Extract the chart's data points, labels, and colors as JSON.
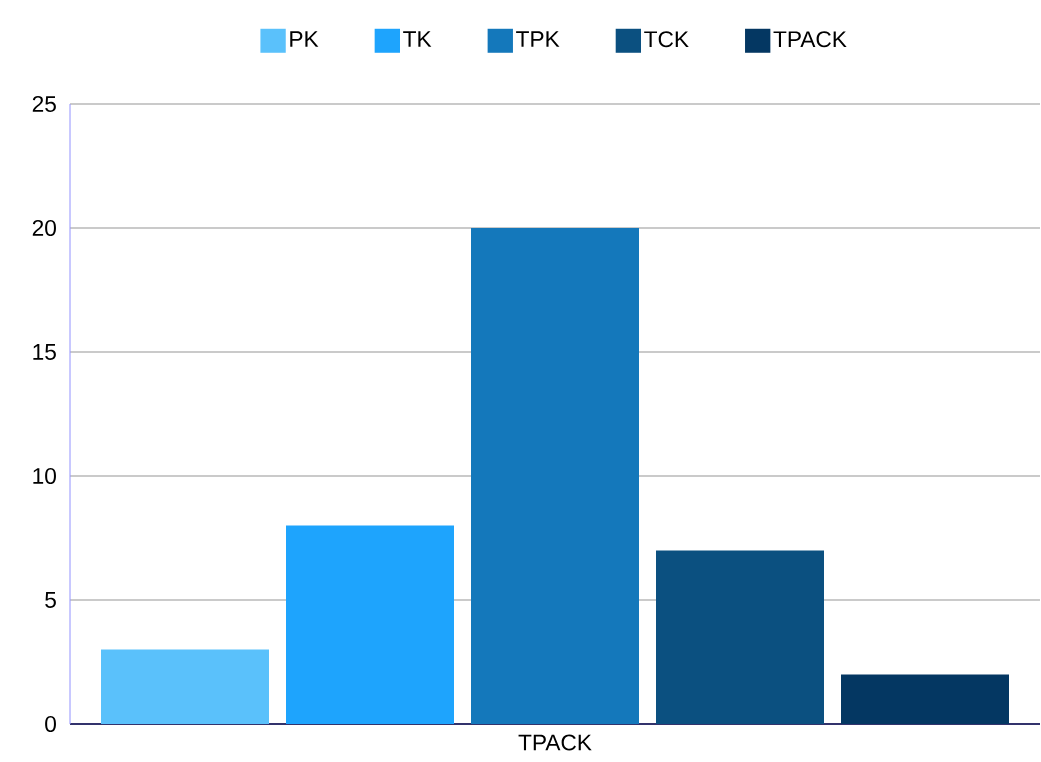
{
  "chart_data": {
    "type": "bar",
    "categories": [
      "TPACK"
    ],
    "series": [
      {
        "name": "PK",
        "color": "#5ac1fb",
        "values": [
          3
        ]
      },
      {
        "name": "TK",
        "color": "#1ea4fd",
        "values": [
          8
        ]
      },
      {
        "name": "TPK",
        "color": "#1478bb",
        "values": [
          20
        ]
      },
      {
        "name": "TCK",
        "color": "#0b5080",
        "values": [
          7
        ]
      },
      {
        "name": "TPACK",
        "color": "#043762",
        "values": [
          2
        ]
      }
    ],
    "ylim": [
      0,
      25
    ],
    "yticks": [
      0,
      5,
      10,
      15,
      20,
      25
    ],
    "grid": "y",
    "legend": "top"
  }
}
